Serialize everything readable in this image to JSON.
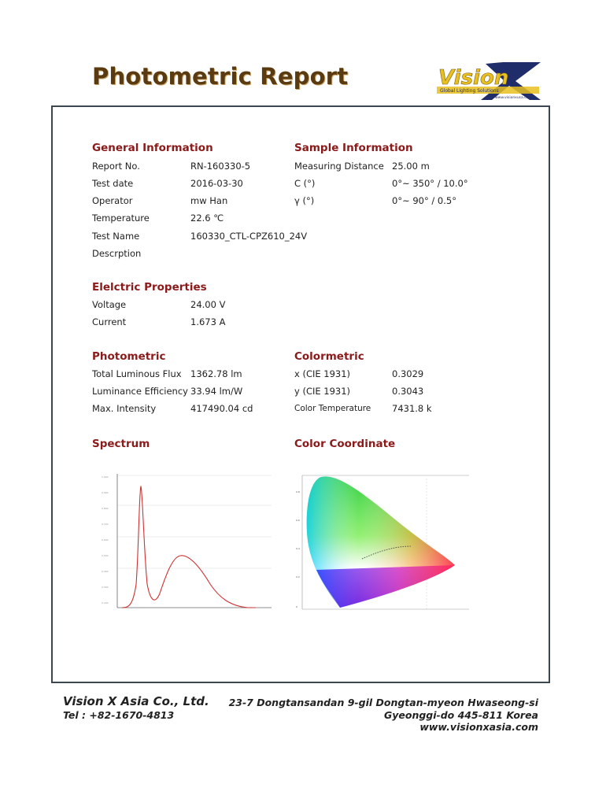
{
  "header": {
    "title": "Photometric Report"
  },
  "logo": {
    "text": "Vision",
    "tagline": "Global Lighting Solutions",
    "url": "www.visionxusa.com",
    "color": "#e8c020"
  },
  "general": {
    "heading": "General Information",
    "rows": [
      {
        "label": "Report No.",
        "value": "RN-160330-5"
      },
      {
        "label": "Test date",
        "value": "2016-03-30"
      },
      {
        "label": "Operator",
        "value": "mw Han"
      },
      {
        "label": "Temperature",
        "value": "22.6 ℃"
      },
      {
        "label": "Test Name",
        "value": "160330_CTL-CPZ610_24V"
      },
      {
        "label": "Descrption",
        "value": ""
      }
    ]
  },
  "sample": {
    "heading": "Sample Information",
    "rows": [
      {
        "label": "Measuring Distance",
        "value": "25.00 m"
      },
      {
        "label": "C (°)",
        "value": "0°~ 350° / 10.0°"
      },
      {
        "label": "γ (°)",
        "value": "0°~ 90° / 0.5°"
      }
    ]
  },
  "electric": {
    "heading": "Elelctric Properties",
    "rows": [
      {
        "label": "Voltage",
        "value": "24.00 V"
      },
      {
        "label": "Current",
        "value": "1.673 A"
      }
    ]
  },
  "photometric": {
    "heading": "Photometric",
    "rows": [
      {
        "label": "Total Luminous Flux",
        "value": "1362.78 lm"
      },
      {
        "label": "Luminance Efficiency",
        "value": "33.94 lm/W"
      },
      {
        "label": "Max. Intensity",
        "value": "417490.04 cd"
      }
    ]
  },
  "colormetric": {
    "heading": "Colormetric",
    "rows": [
      {
        "label": "x (CIE 1931)",
        "value": "0.3029"
      },
      {
        "label": "y (CIE 1931)",
        "value": "0.3043"
      },
      {
        "label": "Color Temperature",
        "value": "7431.8 k"
      }
    ]
  },
  "spectrum": {
    "heading": "Spectrum"
  },
  "coordinate": {
    "heading": "Color Coordinate"
  },
  "footer": {
    "company": "Vision X Asia Co., Ltd.",
    "tel": "Tel : +82-1670-4813",
    "address1": "23-7 Dongtansandan  9-gil Dongtan-myeon Hwaseong-si",
    "address2": "Gyeonggi-do 445-811 Korea",
    "website": "www.visionxasia.com"
  }
}
